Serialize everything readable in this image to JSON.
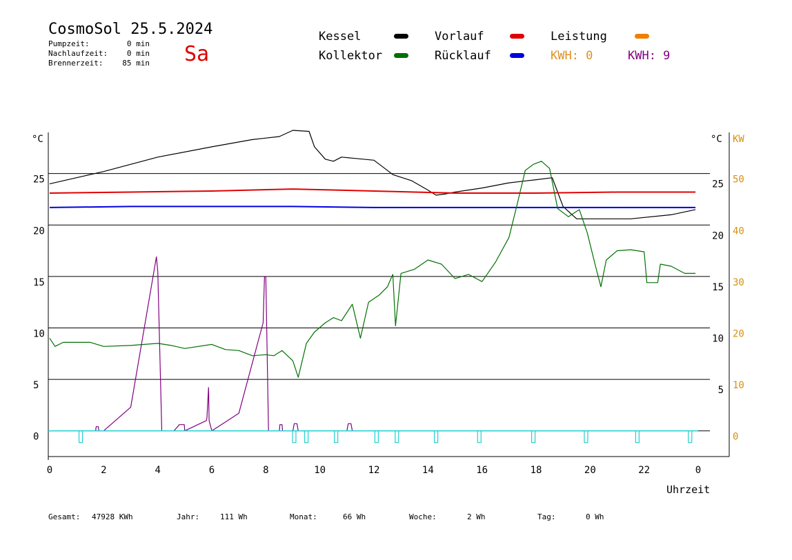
{
  "header": {
    "title": "CosmoSol 25.5.2024",
    "weekday": "Sa",
    "pump_label": "Pumpzeit:",
    "pump_value": "0 min",
    "after_label": "Nachlaufzeit:",
    "after_value": "0 min",
    "burner_label": "Brennerzeit:",
    "burner_value": "85 min"
  },
  "legend": {
    "kessel": "Kessel",
    "vorlauf": "Vorlauf",
    "leistung": "Leistung",
    "kollektor": "Kollektor",
    "ruecklauf": "Rücklauf",
    "kwh1": "KWH: 0",
    "kwh2": "KWH: 9"
  },
  "footer": {
    "gesamt_label": "Gesamt:",
    "gesamt_value": "47928 KWh",
    "jahr_label": "Jahr:",
    "jahr_value": "111 Wh",
    "monat_label": "Monat:",
    "monat_value": "66 Wh",
    "woche_label": "Woche:",
    "woche_value": "2 Wh",
    "tag_label": "Tag:",
    "tag_value": "0 Wh"
  },
  "chart_data": {
    "type": "line",
    "xlabel": "Uhrzeit",
    "ylabel_left": "°C",
    "ylabel_right_temp": "°C",
    "ylabel_right_power": "KW",
    "x_range": [
      0,
      24
    ],
    "x_ticks": [
      "0",
      "2",
      "4",
      "6",
      "8",
      "10",
      "12",
      "14",
      "16",
      "18",
      "20",
      "22",
      "0"
    ],
    "y_range": [
      -2.5,
      29
    ],
    "y_ticks_left": [
      "0",
      "5",
      "10",
      "15",
      "20",
      "25"
    ],
    "y_ticks_right_temp": [
      "5",
      "10",
      "15",
      "20",
      "25"
    ],
    "y_ticks_right_power": [
      "0",
      "10",
      "20",
      "30",
      "40",
      "50"
    ],
    "grid_lines_y": [
      0,
      5,
      10,
      15,
      20,
      25
    ],
    "colors": {
      "kessel": "#000000",
      "vorlauf": "#e00000",
      "ruecklauf": "#0000e0",
      "kollektor": "#007000",
      "leistung": "#f08000",
      "kwh": "#800080",
      "pump": "#20d0d0",
      "power_axis": "#d89010",
      "title_red": "#e00000"
    },
    "series": [
      {
        "name": "Kessel",
        "color": "#000000",
        "x": [
          0,
          2,
          4,
          6,
          7.5,
          8.5,
          9.0,
          9.6,
          9.8,
          10.2,
          10.5,
          10.8,
          11.2,
          12.0,
          12.4,
          12.7,
          13.4,
          14.0,
          14.3,
          14.6,
          15.0,
          16.0,
          17.0,
          18.0,
          18.6,
          18.8,
          19.0,
          19.5,
          20.5,
          21.5,
          23.0,
          23.9
        ],
        "y": [
          24.0,
          25.2,
          26.6,
          27.6,
          28.3,
          28.6,
          29.2,
          29.1,
          27.6,
          26.4,
          26.2,
          26.6,
          26.5,
          26.3,
          25.5,
          24.9,
          24.3,
          23.4,
          22.9,
          23.0,
          23.2,
          23.6,
          24.1,
          24.4,
          24.6,
          23.2,
          21.8,
          20.6,
          20.6,
          20.6,
          21.0,
          21.5
        ]
      },
      {
        "name": "Vorlauf",
        "color": "#e00000",
        "x": [
          0,
          3,
          6,
          9,
          12,
          15,
          18,
          21,
          23.9
        ],
        "y": [
          23.1,
          23.2,
          23.3,
          23.5,
          23.3,
          23.1,
          23.1,
          23.2,
          23.2
        ]
      },
      {
        "name": "Rücklauf",
        "color": "#0000e0",
        "x": [
          0,
          3,
          6,
          9,
          12,
          15,
          18,
          21,
          23.9
        ],
        "y": [
          21.7,
          21.8,
          21.8,
          21.8,
          21.7,
          21.7,
          21.7,
          21.7,
          21.7
        ]
      },
      {
        "name": "Kollektor",
        "color": "#007000",
        "x": [
          0,
          0.2,
          0.5,
          1.0,
          1.5,
          2.0,
          3.0,
          4.0,
          4.5,
          5.0,
          6.0,
          6.5,
          7.0,
          7.5,
          8.0,
          8.3,
          8.6,
          9.0,
          9.2,
          9.5,
          9.8,
          10.2,
          10.5,
          10.8,
          11.2,
          11.5,
          11.8,
          12.2,
          12.5,
          12.7,
          12.8,
          13.0,
          13.5,
          14.0,
          14.5,
          15.0,
          15.5,
          16.0,
          16.5,
          17.0,
          17.3,
          17.6,
          17.9,
          18.2,
          18.5,
          18.8,
          19.2,
          19.6,
          19.9,
          20.2,
          20.4,
          20.6,
          21.0,
          21.5,
          22.0,
          22.1,
          22.5,
          22.6,
          23.0,
          23.5,
          23.9
        ],
        "y": [
          9.0,
          8.2,
          8.6,
          8.6,
          8.6,
          8.2,
          8.3,
          8.5,
          8.3,
          8.0,
          8.4,
          7.9,
          7.8,
          7.3,
          7.4,
          7.3,
          7.8,
          6.8,
          5.2,
          8.5,
          9.6,
          10.5,
          11.0,
          10.7,
          12.3,
          9.0,
          12.5,
          13.2,
          14.0,
          15.2,
          10.2,
          15.3,
          15.7,
          16.6,
          16.2,
          14.8,
          15.2,
          14.5,
          16.4,
          18.8,
          22.0,
          25.3,
          25.9,
          26.2,
          25.5,
          21.6,
          20.8,
          21.5,
          19.2,
          16.0,
          14.0,
          16.6,
          17.5,
          17.6,
          17.4,
          14.4,
          14.4,
          16.2,
          16.0,
          15.3,
          15.3
        ]
      },
      {
        "name": "KWH",
        "color": "#800080",
        "x": [
          0,
          1.7,
          1.72,
          1.8,
          1.82,
          2.0,
          3.0,
          3.95,
          4.0,
          4.15,
          4.17,
          4.6,
          4.8,
          4.82,
          4.98,
          5.0,
          5.8,
          5.82,
          5.88,
          5.9,
          6.0,
          7.0,
          7.9,
          7.95,
          8.0,
          8.1,
          8.15,
          8.5,
          8.52,
          8.6,
          8.62,
          9.0,
          9.05,
          9.15,
          9.2,
          11.0,
          11.05,
          11.15,
          11.2,
          11.5
        ],
        "y": [
          0,
          0,
          0.4,
          0.4,
          0,
          0,
          2.3,
          16.9,
          15.5,
          0,
          0,
          0,
          0.6,
          0.6,
          0.6,
          0,
          1.0,
          1.3,
          4.2,
          1.0,
          0,
          1.7,
          10.5,
          15.0,
          15.0,
          0,
          0,
          0,
          0.6,
          0.6,
          0,
          0,
          0.7,
          0.7,
          0,
          0,
          0.7,
          0.7,
          0,
          0
        ]
      }
    ],
    "pump_marks_x": [
      1.15,
      9.05,
      9.5,
      10.6,
      12.1,
      12.85,
      14.3,
      15.9,
      17.9,
      19.85,
      21.75,
      23.7
    ]
  }
}
